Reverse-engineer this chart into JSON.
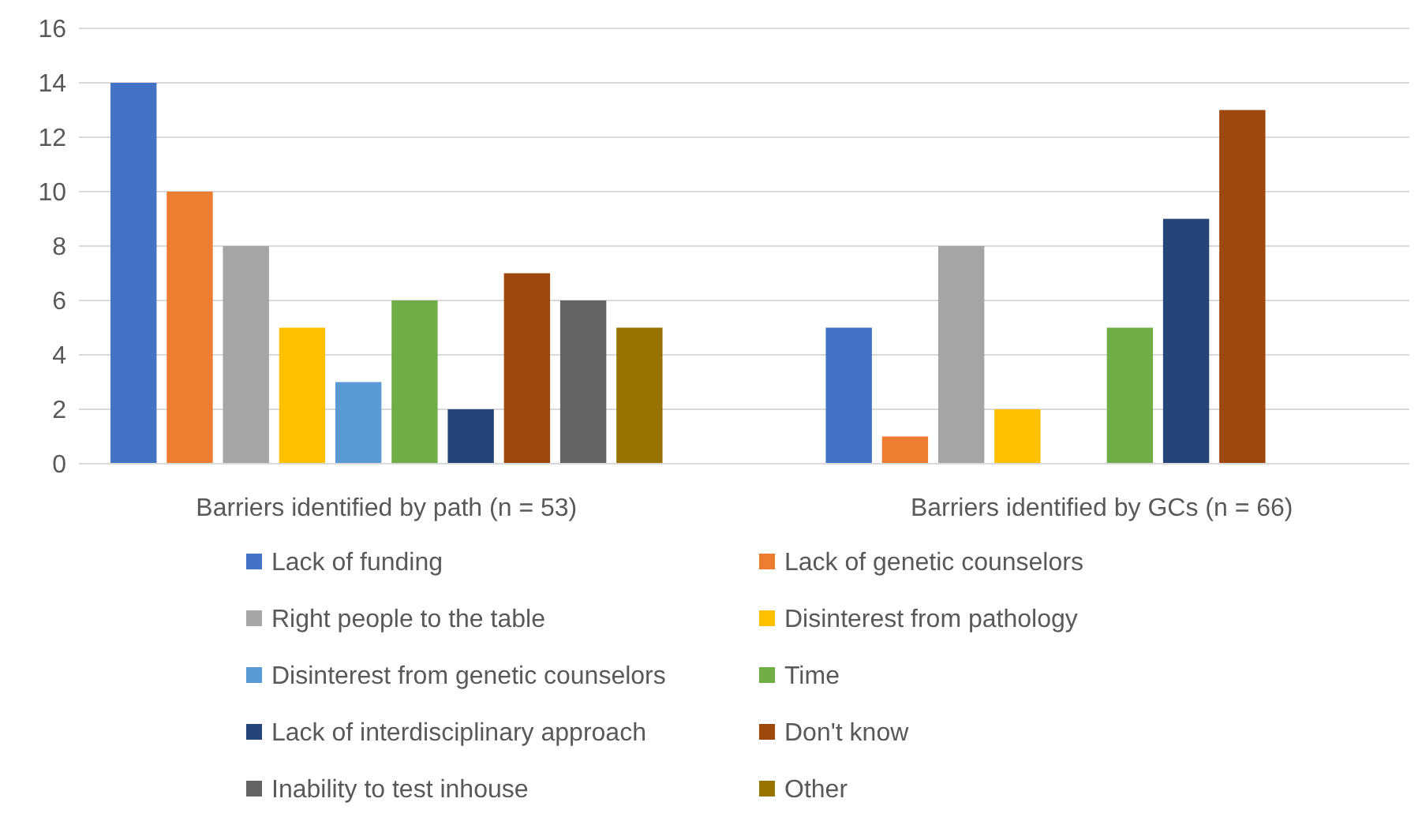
{
  "chart_data": {
    "type": "bar",
    "categories": [
      "Barriers identified by path (n = 53)",
      "Barriers identified by GCs (n = 66)"
    ],
    "ylim": [
      0,
      16
    ],
    "yticks": [
      0,
      2,
      4,
      6,
      8,
      10,
      12,
      14,
      16
    ],
    "grid": "y",
    "legend": "bottom",
    "series": [
      {
        "name": "Lack of funding",
        "color": "#4472c4",
        "values": [
          14,
          5
        ]
      },
      {
        "name": "Lack of genetic counselors",
        "color": "#ed7d31",
        "values": [
          10,
          1
        ]
      },
      {
        "name": "Right people to the table",
        "color": "#a5a5a5",
        "values": [
          8,
          8
        ]
      },
      {
        "name": "Disinterest from pathology",
        "color": "#ffc000",
        "values": [
          5,
          2
        ]
      },
      {
        "name": "Disinterest from genetic counselors",
        "color": "#5b9bd5",
        "values": [
          3,
          null
        ]
      },
      {
        "name": "Time",
        "color": "#70ad47",
        "values": [
          6,
          5
        ]
      },
      {
        "name": "Lack of interdisciplinary approach",
        "color": "#264478",
        "values": [
          2,
          9
        ]
      },
      {
        "name": "Don't know",
        "color": "#9e480e",
        "values": [
          7,
          13
        ]
      },
      {
        "name": "Inability to test inhouse",
        "color": "#636363",
        "values": [
          6,
          null
        ]
      },
      {
        "name": "Other",
        "color": "#997300",
        "values": [
          5,
          null
        ]
      }
    ]
  }
}
